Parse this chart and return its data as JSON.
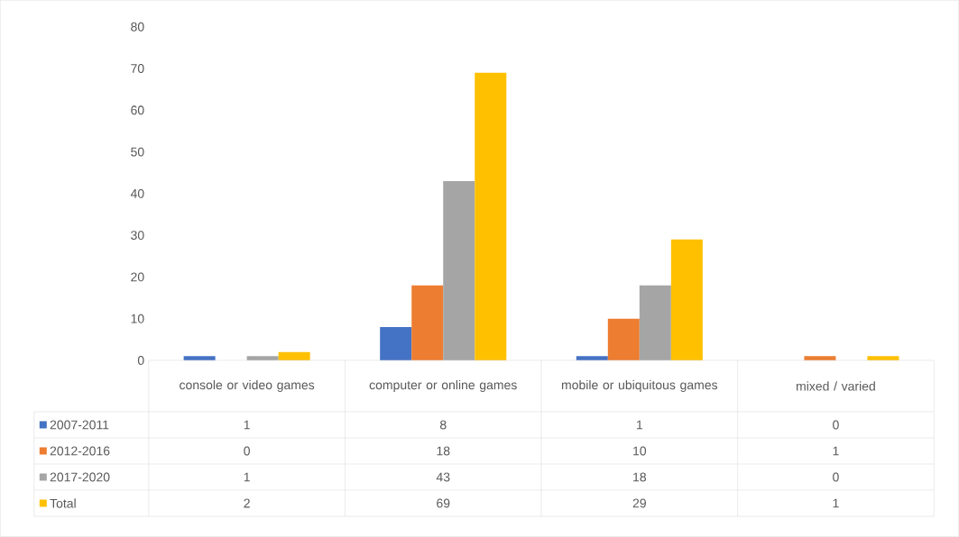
{
  "chart_data": {
    "type": "bar",
    "categories": [
      "console or video games",
      "computer or online games",
      "mobile or ubiquitous games",
      "mixed / varied"
    ],
    "series": [
      {
        "name": "2007-2011",
        "color": "#4472c4",
        "values": [
          1,
          8,
          1,
          0
        ]
      },
      {
        "name": "2012-2016",
        "color": "#ed7d31",
        "values": [
          0,
          18,
          10,
          1
        ]
      },
      {
        "name": "2017-2020",
        "color": "#a5a5a5",
        "values": [
          1,
          43,
          18,
          0
        ]
      },
      {
        "name": "Total",
        "color": "#ffc000",
        "values": [
          2,
          69,
          29,
          1
        ]
      }
    ],
    "ylim": [
      0,
      80
    ],
    "yticks": [
      0,
      10,
      20,
      30,
      40,
      50,
      60,
      70,
      80
    ],
    "grid": false,
    "legend": "bottom",
    "data_labels": true
  }
}
